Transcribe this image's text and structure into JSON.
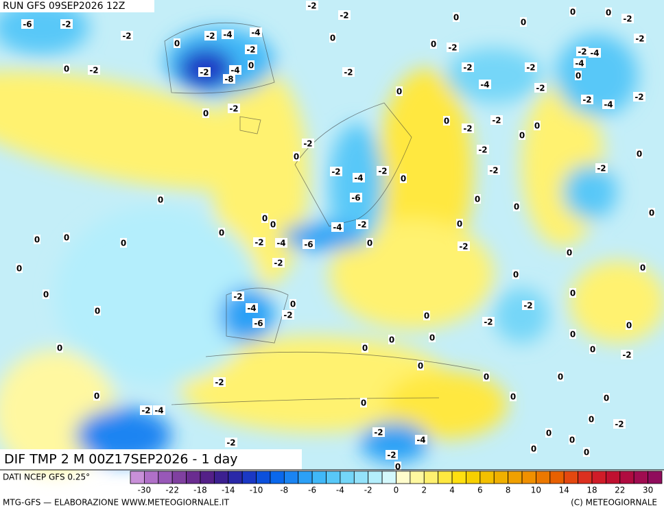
{
  "header": {
    "run": "RUN GFS 09SEP2026 12Z"
  },
  "map": {
    "title": "DIF TMP 2 M 00Z17SEP2026 - 1 day",
    "contour_labels": [
      "-6",
      "-2",
      "-2",
      "0",
      "-2",
      "0",
      "-2",
      "-4",
      "-4",
      "-2",
      "-2",
      "-4",
      "-8",
      "0",
      "-2",
      "-2",
      "-2",
      "0",
      "0",
      "0",
      "-2",
      "-2",
      "0",
      "-2",
      "-4",
      "-2",
      "0",
      "-6",
      "-4",
      "-2",
      "-6",
      "-4",
      "-2",
      "0",
      "0",
      "0",
      "0",
      "0",
      "0",
      "0",
      "0",
      "0",
      "0",
      "0",
      "-2",
      "0",
      "-2",
      "-4",
      "-6",
      "-2",
      "0",
      "-2",
      "0",
      "-2",
      "-4",
      "-2",
      "0",
      "0",
      "0",
      "0",
      "0",
      "-2",
      "-2",
      "0",
      "0",
      "0",
      "0",
      "-2",
      "-4",
      "-2",
      "0",
      "0",
      "0",
      "0",
      "0",
      "0",
      "-2",
      "0",
      "0",
      "0",
      "0",
      "-2",
      "0",
      "0",
      "0",
      "0",
      "-2",
      "0",
      "0",
      "0",
      "-2",
      "-2",
      "-2",
      "0",
      "0",
      "0",
      "0",
      "-2",
      "-2",
      "0",
      "-4",
      "-2",
      "-2",
      "0",
      "0",
      "0",
      "-2",
      "-2",
      "0",
      "-2",
      "-4",
      "-4",
      "-2",
      "-4",
      "-2",
      "0",
      "0",
      "-2",
      "-2"
    ]
  },
  "legend": {
    "source": "DATI NCEP GFS 0.25°",
    "colors": [
      "#c890d8",
      "#b070c8",
      "#9858b8",
      "#8040a0",
      "#6a2c90",
      "#542088",
      "#3c2090",
      "#2a28a8",
      "#1a38c4",
      "#0c50dc",
      "#0a68ec",
      "#1a84f2",
      "#2ca0f6",
      "#40b8f8",
      "#58c8f8",
      "#74d6f8",
      "#94e2fa",
      "#b4eefc",
      "#d4f8fc",
      "#fffccc",
      "#fff8a0",
      "#fff070",
      "#ffe840",
      "#ffe010",
      "#f8d000",
      "#f4c000",
      "#f0b000",
      "#f0a000",
      "#f09000",
      "#ec7800",
      "#e86000",
      "#e44810",
      "#dc3020",
      "#d01c28",
      "#c01030",
      "#b00c40",
      "#a00c50",
      "#900c5c"
    ],
    "ticks": [
      -30,
      -22,
      -18,
      -14,
      -10,
      -8,
      -6,
      -4,
      -2,
      0,
      2,
      4,
      6,
      8,
      10,
      14,
      18,
      22,
      30
    ]
  },
  "footer": {
    "left": "MTG-GFS — ELABORAZIONE WWW.METEOGIORNALE.IT",
    "right": "(C) METEOGIORNALE"
  }
}
